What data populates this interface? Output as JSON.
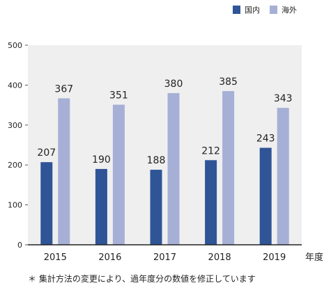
{
  "chart_data": {
    "type": "bar",
    "categories": [
      "2015",
      "2016",
      "2017",
      "2018",
      "2019"
    ],
    "series": [
      {
        "name": "国内",
        "values": [
          207,
          190,
          188,
          212,
          243
        ],
        "color": "#2f5597"
      },
      {
        "name": "海外",
        "values": [
          367,
          351,
          380,
          385,
          343
        ],
        "color": "#a6b0d6"
      }
    ],
    "xlabel": "年度",
    "ylabel": "",
    "ylim": [
      0,
      500
    ],
    "yticks": [
      0,
      100,
      200,
      300,
      400,
      500
    ],
    "grid": false,
    "legend_position": "top-right",
    "plot_background": "#efefef"
  },
  "footnote": "＊ 集計方法の変更により、過年度分の数値を修正しています"
}
